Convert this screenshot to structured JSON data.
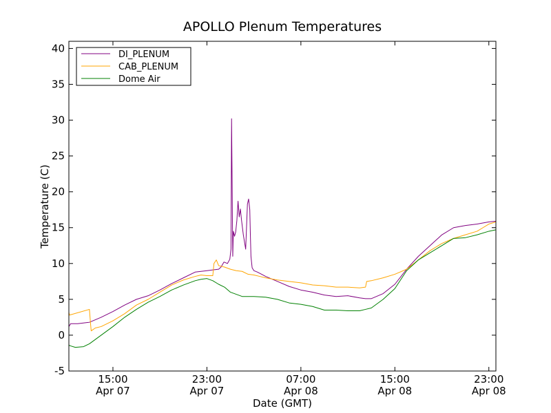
{
  "chart_data": {
    "type": "line",
    "title": "APOLLO Plenum Temperatures",
    "xlabel": "Date (GMT)",
    "ylabel": "Temperature (C)",
    "xlim": [
      11.25,
      47.6
    ],
    "ylim": [
      -5,
      41
    ],
    "x_unit": "hours since Apr 07 00:00 GMT",
    "yticks": [
      {
        "value": -5,
        "label": "-5"
      },
      {
        "value": 0,
        "label": "0"
      },
      {
        "value": 5,
        "label": "5"
      },
      {
        "value": 10,
        "label": "10"
      },
      {
        "value": 15,
        "label": "15"
      },
      {
        "value": 20,
        "label": "20"
      },
      {
        "value": 25,
        "label": "25"
      },
      {
        "value": 30,
        "label": "30"
      },
      {
        "value": 35,
        "label": "35"
      },
      {
        "value": 40,
        "label": "40"
      }
    ],
    "xticks": [
      {
        "value": 15,
        "time": "15:00",
        "date": "Apr 07"
      },
      {
        "value": 23,
        "time": "23:00",
        "date": "Apr 07"
      },
      {
        "value": 31,
        "time": "07:00",
        "date": "Apr 08"
      },
      {
        "value": 39,
        "time": "15:00",
        "date": "Apr 08"
      },
      {
        "value": 47,
        "time": "23:00",
        "date": "Apr 08"
      }
    ],
    "legend_position": "top-left",
    "series": [
      {
        "name": "DI_PLENUM",
        "color": "#800080",
        "x": [
          11.25,
          11.4,
          12.0,
          13.0,
          14.0,
          15.0,
          16.0,
          17.0,
          18.0,
          19.0,
          20.0,
          21.0,
          22.0,
          22.5,
          23.0,
          23.5,
          24.0,
          24.2,
          24.45,
          24.75,
          24.95,
          25.05,
          25.1,
          25.2,
          25.25,
          25.35,
          25.45,
          25.55,
          25.65,
          25.75,
          25.85,
          25.95,
          26.1,
          26.3,
          26.45,
          26.55,
          26.65,
          26.7,
          26.75,
          26.85,
          27.0,
          27.3,
          28.0,
          29.0,
          30.0,
          31.0,
          32.0,
          33.0,
          34.0,
          35.0,
          36.0,
          36.5,
          37.0,
          38.0,
          39.0,
          40.0,
          41.0,
          42.0,
          43.0,
          44.0,
          45.0,
          46.0,
          47.0,
          47.6
        ],
        "y": [
          1.2,
          1.6,
          1.6,
          1.8,
          2.5,
          3.3,
          4.2,
          5.0,
          5.5,
          6.3,
          7.2,
          8.0,
          8.8,
          8.9,
          9.0,
          9.1,
          9.2,
          9.5,
          10.2,
          10.0,
          10.6,
          12.0,
          30.2,
          11.0,
          14.5,
          13.8,
          14.4,
          16.0,
          18.7,
          16.5,
          17.6,
          16.0,
          14.0,
          12.0,
          18.3,
          19.0,
          17.5,
          14.0,
          11.0,
          9.4,
          9.0,
          8.8,
          8.2,
          7.5,
          6.8,
          6.3,
          6.0,
          5.6,
          5.4,
          5.5,
          5.2,
          5.1,
          5.1,
          5.8,
          7.1,
          9.2,
          11.0,
          12.5,
          14.0,
          15.0,
          15.3,
          15.5,
          15.8,
          15.9
        ]
      },
      {
        "name": "CAB_PLENUM",
        "color": "#FFA500",
        "x": [
          11.25,
          11.3,
          13.0,
          13.1,
          13.15,
          13.5,
          14.0,
          15.0,
          16.0,
          17.0,
          18.0,
          19.0,
          20.0,
          21.0,
          22.0,
          22.5,
          23.0,
          23.5,
          23.6,
          23.8,
          24.0,
          24.5,
          25.0,
          25.5,
          26.0,
          26.5,
          27.0,
          27.5,
          28.0,
          29.0,
          30.0,
          31.0,
          32.0,
          33.0,
          34.0,
          35.0,
          36.0,
          36.5,
          36.6,
          37.0,
          38.0,
          39.0,
          40.0,
          41.0,
          42.0,
          43.0,
          44.0,
          45.0,
          46.0,
          46.5,
          47.0,
          47.6
        ],
        "y": [
          3.2,
          2.8,
          3.6,
          1.5,
          0.6,
          1.0,
          1.2,
          2.0,
          3.0,
          4.2,
          5.0,
          6.0,
          7.0,
          7.7,
          8.2,
          8.4,
          8.3,
          8.3,
          10.0,
          10.5,
          9.7,
          9.5,
          9.2,
          9.0,
          8.9,
          8.5,
          8.4,
          8.2,
          8.0,
          7.7,
          7.5,
          7.3,
          7.0,
          6.9,
          6.7,
          6.7,
          6.6,
          6.7,
          7.5,
          7.6,
          8.0,
          8.5,
          9.2,
          10.5,
          11.8,
          12.8,
          13.5,
          14.0,
          14.5,
          15.0,
          15.5,
          15.8
        ]
      },
      {
        "name": "Dome Air",
        "color": "#008000",
        "x": [
          11.25,
          11.4,
          11.8,
          12.5,
          13.0,
          14.0,
          15.0,
          16.0,
          17.0,
          18.0,
          19.0,
          20.0,
          21.0,
          22.0,
          22.5,
          23.0,
          23.5,
          24.0,
          24.5,
          25.0,
          26.0,
          27.0,
          28.0,
          29.0,
          30.0,
          31.0,
          32.0,
          33.0,
          34.0,
          35.0,
          36.0,
          36.5,
          37.0,
          38.0,
          39.0,
          40.0,
          41.0,
          42.0,
          43.0,
          44.0,
          45.0,
          46.0,
          47.0,
          47.6
        ],
        "y": [
          -1.4,
          -1.5,
          -1.7,
          -1.6,
          -1.2,
          0.0,
          1.2,
          2.5,
          3.6,
          4.6,
          5.4,
          6.3,
          7.0,
          7.6,
          7.8,
          7.9,
          7.6,
          7.1,
          6.7,
          6.0,
          5.4,
          5.4,
          5.3,
          5.0,
          4.5,
          4.3,
          4.0,
          3.5,
          3.5,
          3.4,
          3.4,
          3.6,
          3.8,
          5.0,
          6.5,
          9.0,
          10.5,
          11.5,
          12.5,
          13.5,
          13.6,
          14.0,
          14.5,
          14.7
        ]
      }
    ]
  }
}
